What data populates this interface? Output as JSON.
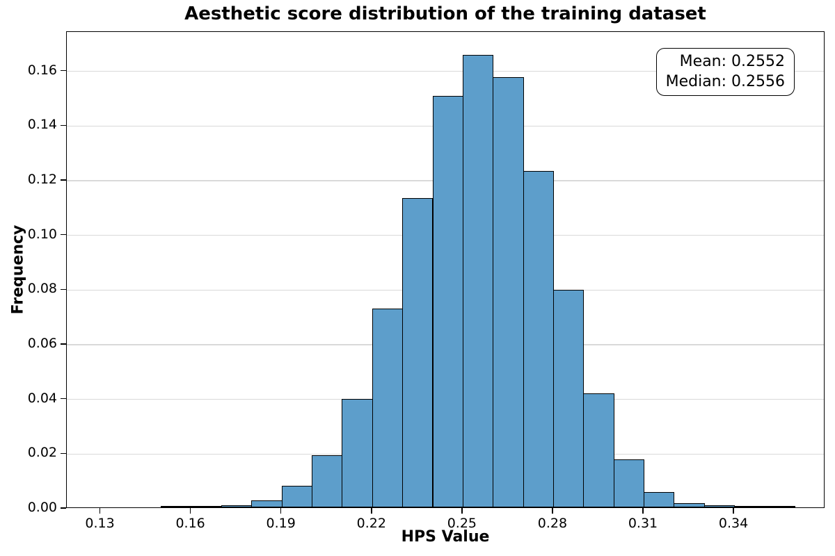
{
  "figure": {
    "title": "Aesthetic score distribution of the training dataset",
    "xlabel": "HPS Value",
    "ylabel": "Frequency"
  },
  "annotation": {
    "lines": [
      "Mean: 0.2552",
      "Median: 0.2556"
    ],
    "mean": 0.2552,
    "median": 0.2556
  },
  "chart_data": {
    "type": "bar",
    "subtype": "histogram",
    "title": "Aesthetic score distribution of the training dataset",
    "xlabel": "HPS Value",
    "ylabel": "Frequency",
    "bin_start": 0.15,
    "bin_width": 0.01,
    "bin_edges": [
      0.15,
      0.16,
      0.17,
      0.18,
      0.19,
      0.2,
      0.21,
      0.22,
      0.23,
      0.24,
      0.25,
      0.26,
      0.27,
      0.28,
      0.29,
      0.3,
      0.31,
      0.32,
      0.33,
      0.34,
      0.35,
      0.36
    ],
    "frequencies": [
      0.0002,
      0.0003,
      0.0008,
      0.0025,
      0.0078,
      0.019,
      0.0397,
      0.0728,
      0.1132,
      0.1504,
      0.1656,
      0.1573,
      0.1231,
      0.0797,
      0.0416,
      0.0176,
      0.0057,
      0.0015,
      0.0008,
      0.0003,
      0.0001
    ],
    "x_tick_labels": [
      "0.13",
      "0.16",
      "0.19",
      "0.22",
      "0.25",
      "0.28",
      "0.31",
      "0.34"
    ],
    "y_tick_labels": [
      "0.00",
      "0.02",
      "0.04",
      "0.06",
      "0.08",
      "0.10",
      "0.12",
      "0.14",
      "0.16"
    ],
    "xlim": [
      0.1188,
      0.3702
    ],
    "ylim": [
      0,
      0.1744
    ],
    "grid": "horizontal-only",
    "legend_position": "upper-right-annotation-box",
    "colors": {
      "bar_fill": "#5d9ecb",
      "bar_edge": "#000000",
      "grid_color": "#d9d9d9",
      "spine_color": "#000000",
      "text_color": "#000000",
      "background": "#ffffff"
    },
    "stats": {
      "mean": 0.2552,
      "median": 0.2556
    }
  }
}
